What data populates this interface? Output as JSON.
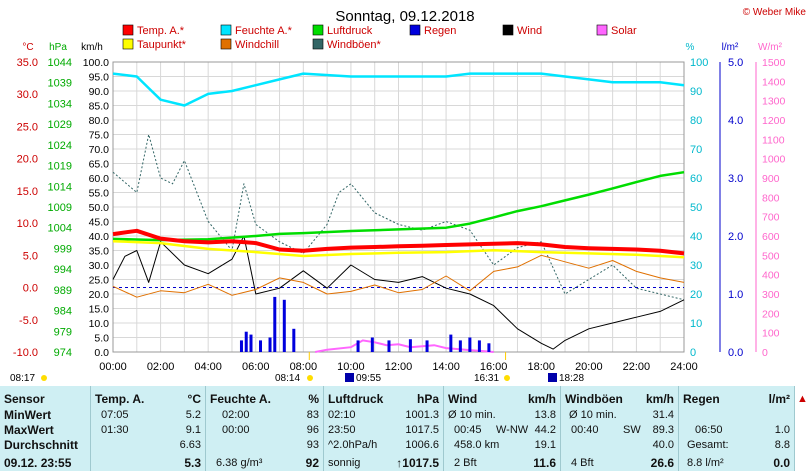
{
  "title": "Sonntag, 09.12.2018",
  "copyright": "© Weber Mike",
  "colors": {
    "temp": "#ff0000",
    "humidity": "#00e5ff",
    "pressure": "#00dd00",
    "regen": "#0000dd",
    "wind": "#000000",
    "solar": "#ff66ff",
    "dewpoint": "#ffff00",
    "windchill": "#e07000",
    "gust": "#336666",
    "grid": "#d8d8d8",
    "accent_blue": "#0000cc"
  },
  "legend": [
    {
      "label": "Temp. A.*",
      "color": "#ff0000"
    },
    {
      "label": "Feuchte A.*",
      "color": "#00e5ff"
    },
    {
      "label": "Luftdruck",
      "color": "#00dd00"
    },
    {
      "label": "Regen",
      "color": "#0000dd"
    },
    {
      "label": "Wind",
      "color": "#000000"
    },
    {
      "label": "Solar",
      "color": "#ff66ff"
    },
    {
      "label": "Taupunkt*",
      "color": "#ffff00"
    },
    {
      "label": "Windchill",
      "color": "#e07000"
    },
    {
      "label": "Windböen*",
      "color": "#336666"
    }
  ],
  "axis_units": {
    "temp": "°C",
    "pressure": "hPa",
    "wind": "km/h",
    "humidity": "%",
    "rain": "l/m²",
    "solar": "W/m²"
  },
  "axis_ticks": {
    "temp": [
      "35.0",
      "30.0",
      "25.0",
      "20.0",
      "15.0",
      "10.0",
      "5.0",
      "0.0",
      "-5.0",
      "-10.0"
    ],
    "pressure": [
      "1044",
      "1039",
      "1034",
      "1029",
      "1024",
      "1019",
      "1014",
      "1009",
      "1004",
      "999",
      "994",
      "989",
      "984",
      "979",
      "974"
    ],
    "wind": [
      "100.0",
      "95.0",
      "90.0",
      "85.0",
      "80.0",
      "75.0",
      "70.0",
      "65.0",
      "60.0",
      "55.0",
      "50.0",
      "45.0",
      "40.0",
      "35.0",
      "30.0",
      "25.0",
      "20.0",
      "15.0",
      "10.0",
      "5.0",
      "0.0"
    ],
    "humidity": [
      "100",
      "90",
      "80",
      "70",
      "60",
      "50",
      "40",
      "30",
      "20",
      "10",
      "0"
    ],
    "rain": [
      "5.0",
      "4.0",
      "3.0",
      "2.0",
      "1.0",
      "0.0"
    ],
    "solar": [
      "1500",
      "1400",
      "1300",
      "1200",
      "1100",
      "1000",
      "900",
      "800",
      "700",
      "600",
      "500",
      "400",
      "300",
      "200",
      "100",
      "0"
    ],
    "x": [
      "00:00",
      "02:00",
      "04:00",
      "06:00",
      "08:00",
      "10:00",
      "12:00",
      "14:00",
      "16:00",
      "18:00",
      "20:00",
      "22:00",
      "24:00"
    ]
  },
  "sun_events": {
    "sunrise_top": "08:17",
    "sunset_top": "16:31",
    "sunshine_start": "08:14",
    "moon1": "09:55",
    "moon2": "18:28"
  },
  "chart_data": {
    "type": "line",
    "x_unit": "hours",
    "xlim": [
      0,
      24
    ],
    "series": [
      {
        "name": "Temp. A.*",
        "axis": "temp",
        "x": [
          0,
          1,
          2,
          3,
          4,
          5,
          6,
          7,
          8,
          9,
          10,
          11,
          12,
          13,
          14,
          15,
          16,
          17,
          18,
          19,
          20,
          21,
          22,
          23,
          24
        ],
        "y": [
          8.3,
          8.8,
          7.6,
          7.2,
          7.0,
          7.2,
          6.9,
          5.9,
          5.7,
          6.0,
          6.2,
          6.3,
          6.4,
          6.5,
          6.6,
          6.7,
          6.8,
          6.9,
          6.7,
          6.3,
          6.1,
          6.0,
          5.9,
          5.7,
          5.3
        ]
      },
      {
        "name": "Feuchte A.*",
        "axis": "humidity",
        "x": [
          0,
          1,
          1.5,
          2,
          3,
          4,
          5,
          6,
          7,
          8,
          10,
          12,
          14,
          15,
          16,
          17,
          18,
          19,
          20,
          21,
          22,
          23,
          24
        ],
        "y": [
          96,
          95,
          91,
          87,
          85,
          89,
          90,
          92,
          94,
          96,
          95,
          95,
          95,
          96,
          96,
          96,
          96,
          95,
          94,
          93,
          93,
          93,
          92
        ]
      },
      {
        "name": "Luftdruck",
        "axis": "pressure",
        "x": [
          0,
          2,
          4,
          6,
          7,
          8,
          10,
          12,
          14,
          15,
          16,
          17,
          18,
          19,
          20,
          21,
          22,
          23,
          24
        ],
        "y": [
          1001.3,
          1001.0,
          1001.2,
          1002.0,
          1002.5,
          1002.7,
          1003.2,
          1003.6,
          1004.0,
          1005.0,
          1006.5,
          1008.0,
          1009.2,
          1010.6,
          1012.0,
          1013.5,
          1015.0,
          1016.5,
          1017.4
        ]
      },
      {
        "name": "Taupunkt*",
        "axis": "temp",
        "x": [
          0,
          2,
          4,
          6,
          8,
          10,
          12,
          14,
          16,
          18,
          20,
          22,
          24
        ],
        "y": [
          7.2,
          6.9,
          6.0,
          5.5,
          4.9,
          5.2,
          5.4,
          5.5,
          5.8,
          5.5,
          5.3,
          5.1,
          4.7
        ]
      },
      {
        "name": "Windchill",
        "axis": "temp",
        "x": [
          0,
          1,
          2,
          3,
          4,
          5,
          6,
          7,
          8,
          9,
          10,
          11,
          12,
          13,
          14,
          15,
          16,
          17,
          18,
          19,
          20,
          21,
          22,
          23,
          24
        ],
        "y": [
          0.2,
          -1.5,
          -0.5,
          -0.8,
          0.5,
          -1.2,
          -0.3,
          1.5,
          0.8,
          -1.0,
          -0.6,
          0.4,
          -0.8,
          -0.3,
          1.8,
          -0.5,
          2.5,
          3.2,
          5.0,
          4.0,
          3.0,
          4.2,
          2.5,
          1.5,
          0.8
        ]
      },
      {
        "name": "Wind",
        "axis": "wind",
        "x": [
          0,
          0.5,
          1,
          1.5,
          2,
          3,
          4,
          5,
          5.5,
          6,
          7,
          8,
          9,
          10,
          11,
          12,
          13,
          14,
          15,
          16,
          17,
          18,
          18.5,
          19,
          20,
          21,
          22,
          23,
          24
        ],
        "y": [
          25,
          33,
          35,
          24,
          38,
          30,
          27,
          32,
          40,
          20,
          22,
          28,
          22,
          30,
          25,
          24,
          26,
          22,
          20,
          16,
          8,
          3,
          1,
          4,
          8,
          10,
          12,
          14,
          18
        ]
      },
      {
        "name": "Windböen*",
        "axis": "wind",
        "x": [
          0,
          1,
          1.5,
          2,
          2.5,
          3,
          4,
          5,
          5.5,
          6,
          7,
          7.5,
          8,
          9,
          9.5,
          10,
          11,
          12,
          13,
          14,
          15,
          16,
          17,
          18,
          19,
          20,
          21,
          22,
          23,
          24
        ],
        "y": [
          62,
          55,
          75,
          60,
          58,
          66,
          45,
          35,
          58,
          44,
          38,
          36,
          34,
          44,
          55,
          58,
          48,
          44,
          42,
          45,
          42,
          30,
          36,
          38,
          20,
          25,
          30,
          22,
          20,
          18
        ]
      },
      {
        "name": "Regen",
        "axis": "rain",
        "type": "bar",
        "x": [
          5.4,
          5.6,
          5.8,
          6.2,
          6.6,
          6.8,
          7.2,
          7.6,
          10.3,
          10.9,
          11.6,
          12.5,
          13.2,
          14.2,
          14.6,
          15.0,
          15.4,
          15.8
        ],
        "y": [
          0.2,
          0.35,
          0.3,
          0.2,
          0.25,
          0.95,
          0.9,
          0.4,
          0.2,
          0.25,
          0.2,
          0.22,
          0.2,
          0.3,
          0.2,
          0.25,
          0.2,
          0.15
        ]
      },
      {
        "name": "Solar",
        "axis": "solar",
        "x": [
          8.5,
          9,
          10,
          10.5,
          11,
          11.5,
          12,
          12.5,
          13,
          13.5,
          14,
          14.5,
          15,
          15.5,
          16
        ],
        "y": [
          0,
          12,
          25,
          60,
          50,
          35,
          40,
          25,
          30,
          35,
          20,
          15,
          10,
          5,
          0
        ]
      }
    ]
  },
  "stats": {
    "sensor": {
      "header": "Sensor",
      "rows": [
        "MinWert",
        "MaxWert",
        "Durchschnitt"
      ],
      "last": "09.12. 23:55"
    },
    "temp": {
      "header": "Temp. A.",
      "unit": "°C",
      "min_time": "07:05",
      "min": "5.2",
      "max_time": "01:30",
      "max": "9.1",
      "avg": "6.63",
      "last": "5.3"
    },
    "humidity": {
      "header": "Feuchte A.",
      "unit": "%",
      "min_time": "02:00",
      "min": "83",
      "max_time": "00:00",
      "max": "96",
      "avg": "93",
      "extra": "6.38 g/m³",
      "last": "92"
    },
    "pressure": {
      "header": "Luftdruck",
      "unit": "hPa",
      "min_time": "02:10",
      "min": "1001.3",
      "max_time": "23:50",
      "max": "1017.5",
      "trend": "^2.0hPa/h",
      "avg": "1006.6",
      "weather": "sonnig",
      "last": "↑1017.5"
    },
    "wind": {
      "header": "Wind",
      "unit": "km/h",
      "row1_label": "Ø 10 min.",
      "row1": "13.8",
      "row2_time": "00:45",
      "row2_dir": "W-NW",
      "row2": "44.2",
      "row3_label": "458.0 km",
      "row3": "19.1",
      "bft": "2 Bft",
      "last": "11.6"
    },
    "gust": {
      "header": "Windböen",
      "unit": "km/h",
      "row1_label": "Ø 10 min.",
      "row1": "31.4",
      "row2_time": "00:40",
      "row2_dir": "SW",
      "row2": "89.3",
      "row3": "40.0",
      "bft": "4 Bft",
      "last": "26.6"
    },
    "rain": {
      "header": "Regen",
      "unit": "l/m²",
      "row2_time": "06:50",
      "row2": "1.0",
      "row3_label": "Gesamt:",
      "row3": "8.8",
      "last_label": "8.8 l/m²",
      "last": "0.0"
    }
  }
}
